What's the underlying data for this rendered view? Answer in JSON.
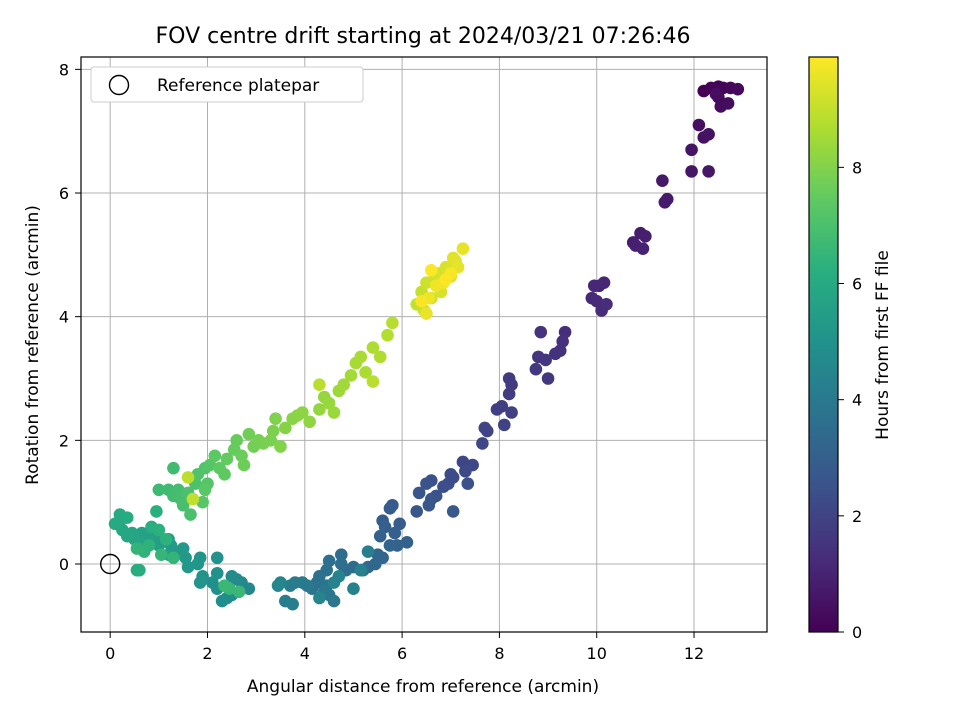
{
  "chart_data": {
    "type": "scatter",
    "title": "FOV centre drift starting at 2024/03/21 07:26:46",
    "xlabel": "Angular distance from reference (arcmin)",
    "ylabel": "Rotation from reference (arcmin)",
    "colorbar_label": "Hours from first FF file",
    "xlim": [
      -0.6,
      13.5
    ],
    "ylim": [
      -1.1,
      8.2
    ],
    "xticks": [
      0,
      2,
      4,
      6,
      8,
      10,
      12
    ],
    "yticks": [
      0,
      2,
      4,
      6,
      8
    ],
    "colorbar_range": [
      0,
      9.9
    ],
    "colorbar_ticks": [
      0,
      2,
      4,
      6,
      8
    ],
    "colormap": "viridis",
    "grid": true,
    "legend": {
      "placement": "top-left",
      "entries": [
        "Reference platepar"
      ]
    },
    "reference_point": {
      "x": 0,
      "y": 0
    },
    "series": [
      {
        "points": [
          [
            12.2,
            7.65
          ],
          [
            12.35,
            7.7
          ],
          [
            12.5,
            7.72
          ],
          [
            12.6,
            7.7
          ],
          [
            12.75,
            7.7
          ],
          [
            12.9,
            7.68
          ],
          [
            12.5,
            7.55
          ],
          [
            12.55,
            7.4
          ],
          [
            12.7,
            7.45
          ],
          [
            12.45,
            7.6
          ],
          [
            12.1,
            7.1
          ],
          [
            12.2,
            6.9
          ],
          [
            12.3,
            6.95
          ],
          [
            11.95,
            6.7
          ],
          [
            11.95,
            6.35
          ],
          [
            12.3,
            6.35
          ],
          [
            11.35,
            6.2
          ],
          [
            11.45,
            5.9
          ],
          [
            11.4,
            5.85
          ],
          [
            10.75,
            5.2
          ],
          [
            10.9,
            5.35
          ],
          [
            11.0,
            5.3
          ],
          [
            10.8,
            5.15
          ],
          [
            10.95,
            5.1
          ],
          [
            10.05,
            4.5
          ],
          [
            10.15,
            4.55
          ],
          [
            9.95,
            4.5
          ],
          [
            9.9,
            4.3
          ],
          [
            10.0,
            4.25
          ],
          [
            10.1,
            4.1
          ],
          [
            10.2,
            4.2
          ],
          [
            9.35,
            3.75
          ],
          [
            9.3,
            3.6
          ],
          [
            9.25,
            3.45
          ],
          [
            9.15,
            3.4
          ],
          [
            8.85,
            3.75
          ],
          [
            8.8,
            3.35
          ],
          [
            8.95,
            3.3
          ],
          [
            9.0,
            3.0
          ],
          [
            8.75,
            3.15
          ],
          [
            8.2,
            3.0
          ],
          [
            8.25,
            2.9
          ],
          [
            8.2,
            2.75
          ],
          [
            8.05,
            2.55
          ],
          [
            7.95,
            2.5
          ],
          [
            8.25,
            2.45
          ],
          [
            8.1,
            2.25
          ],
          [
            7.7,
            2.2
          ],
          [
            7.75,
            2.15
          ],
          [
            7.65,
            1.95
          ]
        ]
      },
      {
        "points": [
          [
            7.25,
            1.65
          ],
          [
            7.45,
            1.6
          ],
          [
            7.3,
            1.5
          ],
          [
            7.05,
            1.4
          ],
          [
            7.0,
            1.45
          ],
          [
            6.95,
            1.3
          ],
          [
            6.85,
            1.25
          ],
          [
            7.35,
            1.3
          ],
          [
            6.6,
            1.35
          ],
          [
            6.5,
            1.3
          ],
          [
            6.7,
            1.1
          ],
          [
            6.6,
            1.05
          ],
          [
            6.35,
            1.15
          ],
          [
            6.55,
            0.95
          ],
          [
            6.3,
            0.85
          ],
          [
            7.05,
            0.85
          ],
          [
            5.8,
            0.95
          ],
          [
            5.75,
            0.9
          ],
          [
            5.6,
            0.7
          ],
          [
            5.95,
            0.65
          ],
          [
            5.85,
            0.5
          ],
          [
            5.65,
            0.6
          ],
          [
            5.55,
            0.45
          ],
          [
            6.1,
            0.35
          ],
          [
            5.9,
            0.3
          ],
          [
            5.75,
            0.3
          ],
          [
            5.5,
            0.15
          ],
          [
            5.6,
            0.1
          ],
          [
            5.45,
            0.0
          ],
          [
            5.3,
            -0.05
          ],
          [
            5.2,
            -0.1
          ],
          [
            5.0,
            -0.05
          ],
          [
            4.85,
            -0.1
          ],
          [
            4.75,
            0.15
          ],
          [
            4.75,
            0.0
          ],
          [
            4.5,
            0.05
          ],
          [
            4.45,
            -0.1
          ],
          [
            4.3,
            -0.2
          ],
          [
            4.25,
            -0.3
          ],
          [
            4.15,
            -0.4
          ],
          [
            4.45,
            -0.35
          ],
          [
            4.5,
            -0.5
          ],
          [
            4.6,
            -0.6
          ],
          [
            4.4,
            -0.45
          ],
          [
            4.05,
            -0.35
          ],
          [
            3.95,
            -0.3
          ],
          [
            3.8,
            -0.3
          ],
          [
            3.7,
            -0.35
          ],
          [
            3.6,
            -0.6
          ],
          [
            3.75,
            -0.65
          ],
          [
            5.3,
            0.2
          ],
          [
            5.15,
            -0.1
          ],
          [
            5.0,
            -0.4
          ],
          [
            4.7,
            -0.2
          ],
          [
            4.6,
            -0.3
          ],
          [
            4.3,
            -0.55
          ]
        ]
      },
      {
        "points": [
          [
            3.5,
            -0.3
          ],
          [
            3.45,
            -0.35
          ],
          [
            2.85,
            -0.4
          ],
          [
            2.7,
            -0.3
          ],
          [
            2.6,
            -0.25
          ],
          [
            2.5,
            -0.2
          ],
          [
            2.5,
            -0.5
          ],
          [
            2.4,
            -0.55
          ],
          [
            2.3,
            -0.6
          ],
          [
            2.2,
            -0.4
          ],
          [
            2.1,
            -0.3
          ],
          [
            2.2,
            -0.15
          ],
          [
            2.2,
            0.1
          ],
          [
            1.9,
            -0.2
          ],
          [
            1.85,
            -0.3
          ],
          [
            1.85,
            0.1
          ],
          [
            1.8,
            0.0
          ],
          [
            1.6,
            -0.05
          ],
          [
            1.55,
            0.1
          ],
          [
            1.5,
            0.25
          ],
          [
            1.35,
            0.2
          ],
          [
            1.25,
            0.3
          ],
          [
            1.2,
            0.15
          ],
          [
            1.2,
            0.4
          ],
          [
            1.0,
            0.3
          ],
          [
            0.95,
            0.4
          ],
          [
            0.85,
            0.45
          ],
          [
            0.75,
            0.4
          ],
          [
            0.65,
            0.5
          ],
          [
            0.6,
            0.35
          ],
          [
            0.5,
            0.4
          ],
          [
            0.45,
            0.5
          ],
          [
            0.35,
            0.45
          ],
          [
            0.25,
            0.55
          ],
          [
            0.2,
            0.7
          ],
          [
            0.1,
            0.65
          ],
          [
            0.2,
            0.8
          ],
          [
            0.35,
            0.75
          ],
          [
            0.55,
            -0.1
          ],
          [
            0.6,
            -0.1
          ],
          [
            0.85,
            0.6
          ],
          [
            0.95,
            0.85
          ],
          [
            1.0,
            0.55
          ],
          [
            1.15,
            0.4
          ],
          [
            0.8,
            0.3
          ],
          [
            0.7,
            0.2
          ],
          [
            0.55,
            0.25
          ],
          [
            1.3,
            0.1
          ],
          [
            1.05,
            0.15
          ],
          [
            2.45,
            -0.4
          ],
          [
            2.65,
            -0.45
          ],
          [
            2.35,
            -0.35
          ]
        ]
      },
      {
        "points": [
          [
            1.0,
            1.2
          ],
          [
            1.2,
            1.2
          ],
          [
            1.3,
            1.55
          ],
          [
            1.3,
            1.1
          ],
          [
            1.4,
            1.2
          ],
          [
            1.45,
            1.05
          ],
          [
            1.5,
            0.95
          ],
          [
            1.65,
            0.8
          ],
          [
            1.6,
            1.15
          ],
          [
            1.75,
            1.3
          ],
          [
            1.8,
            1.45
          ],
          [
            1.95,
            1.55
          ],
          [
            2.0,
            1.3
          ],
          [
            2.05,
            1.6
          ],
          [
            1.9,
            1.0
          ],
          [
            1.95,
            1.2
          ],
          [
            2.15,
            1.75
          ],
          [
            2.25,
            1.55
          ],
          [
            2.35,
            1.45
          ],
          [
            2.4,
            1.7
          ],
          [
            2.55,
            1.85
          ],
          [
            2.6,
            2.0
          ],
          [
            2.7,
            1.75
          ],
          [
            2.75,
            1.6
          ],
          [
            2.85,
            2.1
          ],
          [
            2.95,
            1.9
          ],
          [
            3.05,
            2.0
          ],
          [
            3.15,
            1.95
          ],
          [
            3.3,
            2.0
          ],
          [
            3.35,
            2.15
          ],
          [
            3.4,
            2.35
          ],
          [
            3.5,
            1.9
          ],
          [
            3.6,
            2.2
          ],
          [
            3.75,
            2.35
          ],
          [
            3.85,
            2.4
          ],
          [
            3.95,
            2.45
          ],
          [
            4.1,
            2.3
          ],
          [
            4.3,
            2.5
          ],
          [
            4.4,
            2.7
          ],
          [
            4.5,
            2.6
          ],
          [
            4.6,
            2.45
          ],
          [
            4.7,
            2.8
          ],
          [
            4.8,
            2.9
          ],
          [
            4.95,
            3.05
          ],
          [
            5.05,
            3.25
          ],
          [
            5.15,
            3.35
          ],
          [
            5.25,
            3.1
          ],
          [
            5.4,
            3.5
          ],
          [
            5.55,
            3.35
          ],
          [
            5.7,
            3.7
          ],
          [
            5.8,
            3.9
          ],
          [
            5.4,
            2.95
          ],
          [
            4.3,
            2.9
          ],
          [
            1.6,
            1.4
          ],
          [
            1.7,
            1.05
          ]
        ]
      },
      {
        "points": [
          [
            6.3,
            4.2
          ],
          [
            6.4,
            4.4
          ],
          [
            6.45,
            4.1
          ],
          [
            6.5,
            4.55
          ],
          [
            6.6,
            4.3
          ],
          [
            6.65,
            4.6
          ],
          [
            6.75,
            4.7
          ],
          [
            6.8,
            4.4
          ],
          [
            6.9,
            4.8
          ],
          [
            7.0,
            4.65
          ],
          [
            7.05,
            4.95
          ],
          [
            7.1,
            4.9
          ],
          [
            7.15,
            4.8
          ],
          [
            7.25,
            5.1
          ],
          [
            6.5,
            4.05
          ],
          [
            6.55,
            4.3
          ],
          [
            6.7,
            4.5
          ],
          [
            6.85,
            4.55
          ],
          [
            7.0,
            4.7
          ],
          [
            6.4,
            4.25
          ],
          [
            6.6,
            4.75
          ],
          [
            6.9,
            4.6
          ]
        ]
      }
    ]
  }
}
